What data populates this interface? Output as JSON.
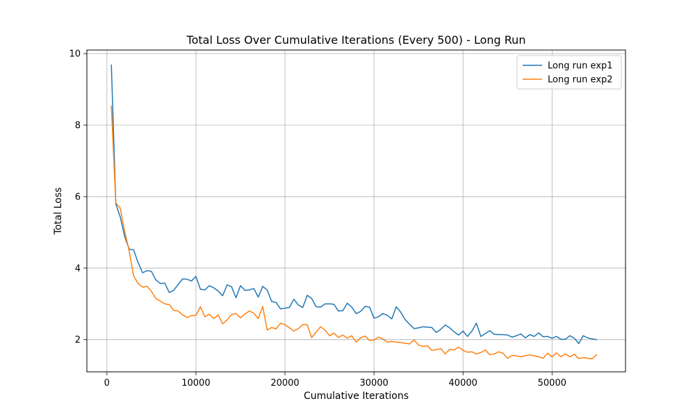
{
  "chart_data": {
    "type": "line",
    "title": "Total Loss Over Cumulative Iterations (Every 500) - Long Run",
    "xlabel": "Cumulative Iterations",
    "ylabel": "Total Loss",
    "xlim": [
      -2250,
      58250
    ],
    "ylim": [
      1.1,
      10.1
    ],
    "xticks": [
      0,
      10000,
      20000,
      30000,
      40000,
      50000
    ],
    "yticks": [
      2,
      4,
      6,
      8,
      10
    ],
    "grid": true,
    "legend_position": "top-right",
    "x_start": 500,
    "x_step": 500,
    "series": [
      {
        "name": "Long run exp1",
        "color": "#1f77b4",
        "values": [
          9.68,
          5.8,
          5.43,
          4.88,
          4.53,
          4.51,
          4.16,
          3.87,
          3.93,
          3.91,
          3.67,
          3.57,
          3.58,
          3.32,
          3.38,
          3.54,
          3.7,
          3.69,
          3.64,
          3.77,
          3.41,
          3.39,
          3.51,
          3.45,
          3.36,
          3.23,
          3.53,
          3.48,
          3.17,
          3.51,
          3.38,
          3.39,
          3.43,
          3.19,
          3.49,
          3.39,
          3.07,
          3.04,
          2.86,
          2.88,
          2.9,
          3.13,
          2.97,
          2.9,
          3.24,
          3.15,
          2.92,
          2.91,
          3.0,
          3.0,
          2.99,
          2.8,
          2.81,
          3.02,
          2.91,
          2.73,
          2.79,
          2.93,
          2.91,
          2.6,
          2.64,
          2.73,
          2.68,
          2.58,
          2.92,
          2.77,
          2.56,
          2.43,
          2.31,
          2.33,
          2.36,
          2.35,
          2.34,
          2.2,
          2.29,
          2.41,
          2.33,
          2.22,
          2.13,
          2.24,
          2.09,
          2.24,
          2.46,
          2.09,
          2.17,
          2.25,
          2.15,
          2.14,
          2.14,
          2.13,
          2.07,
          2.11,
          2.16,
          2.05,
          2.14,
          2.09,
          2.19,
          2.08,
          2.09,
          2.04,
          2.09,
          2.01,
          2.01,
          2.11,
          2.04,
          1.89,
          2.11,
          2.05,
          2.02,
          2.0
        ]
      },
      {
        "name": "Long run exp2",
        "color": "#ff7f0e",
        "values": [
          8.53,
          5.82,
          5.68,
          5.02,
          4.48,
          3.78,
          3.57,
          3.47,
          3.49,
          3.35,
          3.15,
          3.08,
          3.0,
          2.98,
          2.82,
          2.8,
          2.69,
          2.62,
          2.67,
          2.68,
          2.92,
          2.64,
          2.71,
          2.59,
          2.69,
          2.44,
          2.55,
          2.7,
          2.73,
          2.61,
          2.72,
          2.8,
          2.74,
          2.59,
          2.93,
          2.27,
          2.34,
          2.3,
          2.46,
          2.42,
          2.33,
          2.24,
          2.31,
          2.42,
          2.42,
          2.06,
          2.21,
          2.36,
          2.27,
          2.11,
          2.18,
          2.06,
          2.13,
          2.04,
          2.11,
          1.93,
          2.05,
          2.1,
          1.98,
          1.99,
          2.07,
          2.02,
          1.93,
          1.95,
          1.93,
          1.92,
          1.9,
          1.88,
          1.99,
          1.85,
          1.81,
          1.83,
          1.7,
          1.72,
          1.75,
          1.6,
          1.73,
          1.71,
          1.79,
          1.7,
          1.65,
          1.66,
          1.6,
          1.64,
          1.71,
          1.58,
          1.6,
          1.66,
          1.62,
          1.48,
          1.56,
          1.55,
          1.52,
          1.55,
          1.57,
          1.55,
          1.52,
          1.48,
          1.62,
          1.52,
          1.63,
          1.52,
          1.6,
          1.52,
          1.59,
          1.47,
          1.5,
          1.48,
          1.46,
          1.58
        ]
      }
    ]
  }
}
